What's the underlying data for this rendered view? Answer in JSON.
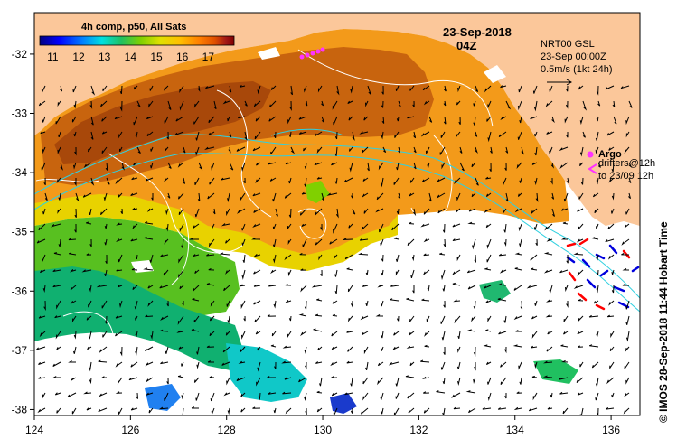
{
  "colorbar": {
    "title": "4h comp, p50, All Sats",
    "labels": [
      "11",
      "12",
      "13",
      "14",
      "15",
      "16",
      "17"
    ],
    "min": 10.5,
    "max": 18,
    "stops": [
      "#00007f",
      "#0000ff",
      "#0080ff",
      "#00e0e0",
      "#20c060",
      "#80d000",
      "#e0e000",
      "#ffc000",
      "#ff8000",
      "#e05000",
      "#a01818",
      "#800000"
    ]
  },
  "date": {
    "line1": "23-Sep-2018",
    "line2": "04Z"
  },
  "current_legend": {
    "line1": "NRT00 GSL",
    "line2": "23-Sep 00:00Z",
    "line3": "0.5m/s (1kt 24h)"
  },
  "argo_legend": {
    "argo": "Argo",
    "drifters1": "drifters@12h",
    "drifters2": "to 23/09 12h"
  },
  "credit": "© IMOS 28-Sep-2018 11:44 Hobart Time",
  "axes": {
    "x_ticks": [
      "124",
      "126",
      "128",
      "130",
      "132",
      "134",
      "136"
    ],
    "y_ticks": [
      "-32",
      "-33",
      "-34",
      "-35",
      "-36",
      "-37",
      "-38"
    ],
    "xlim": [
      124,
      136.6
    ],
    "ylim": [
      -38.1,
      -31.3
    ]
  },
  "colors": {
    "land": "#fbc79a",
    "nodata": "#ffffff",
    "argo": "#ff33ff"
  }
}
